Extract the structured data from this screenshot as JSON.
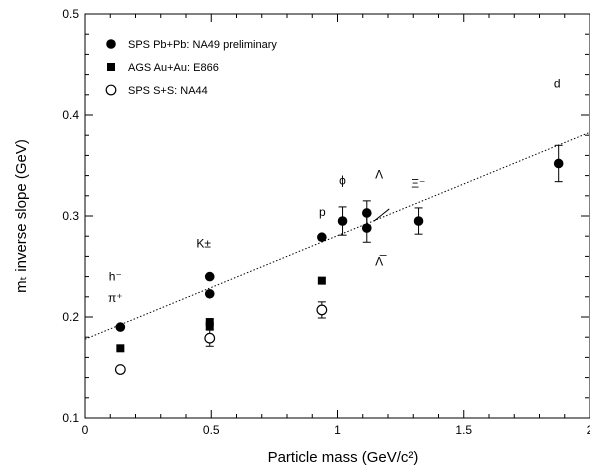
{
  "chart_data": {
    "type": "scatter",
    "xlabel": "Particle mass (GeV/c²)",
    "ylabel": "mₜ inverse slope (GeV)",
    "xlim": [
      0,
      2
    ],
    "ylim": [
      0.1,
      0.5
    ],
    "x_ticks": [
      "0",
      "0.5",
      "1",
      "1.5",
      "2"
    ],
    "y_ticks": [
      "0.1",
      "0.2",
      "0.3",
      "0.4",
      "0.5"
    ],
    "legend_position": "top-left",
    "series": [
      {
        "name": "SPS Pb+Pb: NA49 preliminary",
        "marker": "filled-circle",
        "points": [
          {
            "x": 0.14,
            "y": 0.19
          },
          {
            "x": 0.494,
            "y": 0.24
          },
          {
            "x": 0.494,
            "y": 0.223
          },
          {
            "x": 0.938,
            "y": 0.279
          },
          {
            "x": 1.02,
            "y": 0.295,
            "err": 0.014
          },
          {
            "x": 1.116,
            "y": 0.303,
            "err": 0.012
          },
          {
            "x": 1.116,
            "y": 0.288,
            "err": 0.014
          },
          {
            "x": 1.321,
            "y": 0.295,
            "err": 0.013
          },
          {
            "x": 1.876,
            "y": 0.352,
            "err": 0.018
          }
        ]
      },
      {
        "name": "AGS Au+Au: E866",
        "marker": "filled-square",
        "points": [
          {
            "x": 0.14,
            "y": 0.169
          },
          {
            "x": 0.494,
            "y": 0.195
          },
          {
            "x": 0.494,
            "y": 0.191
          },
          {
            "x": 0.938,
            "y": 0.236
          }
        ]
      },
      {
        "name": "SPS S+S: NA44",
        "marker": "open-circle",
        "points": [
          {
            "x": 0.14,
            "y": 0.148
          },
          {
            "x": 0.494,
            "y": 0.179,
            "err": 0.008
          },
          {
            "x": 0.938,
            "y": 0.207,
            "err": 0.008
          }
        ]
      }
    ],
    "fit_line": {
      "style": "dotted",
      "x": [
        0,
        2
      ],
      "y": [
        0.178,
        0.383
      ]
    },
    "annotations": [
      {
        "text": "h⁻",
        "x": 0.12,
        "y": 0.236
      },
      {
        "text": "π⁺",
        "x": 0.12,
        "y": 0.215
      },
      {
        "text": "K±",
        "x": 0.47,
        "y": 0.269
      },
      {
        "text": "p",
        "x": 0.94,
        "y": 0.3
      },
      {
        "text": "ϕ",
        "x": 1.02,
        "y": 0.331
      },
      {
        "text": "Λ",
        "x": 1.165,
        "y": 0.337
      },
      {
        "text": "Λ̅",
        "x": 1.165,
        "y": 0.251
      },
      {
        "text": "Ξ⁻",
        "x": 1.32,
        "y": 0.328
      },
      {
        "text": "d",
        "x": 1.87,
        "y": 0.427
      }
    ]
  }
}
